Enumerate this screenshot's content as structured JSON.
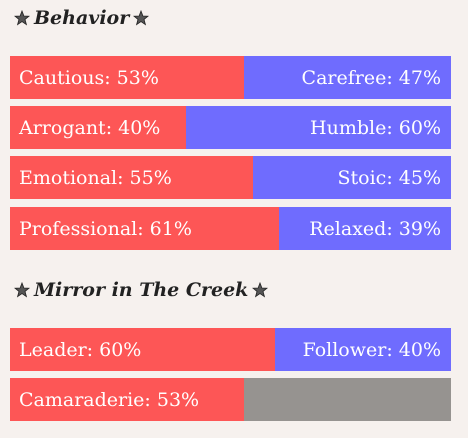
{
  "colors": {
    "left": "#fd5656",
    "right": "#6f6cfe",
    "empty": "#969390",
    "background": "#f6f1ee",
    "star": "#555555"
  },
  "sections": [
    {
      "title": "Behavior",
      "rows": [
        {
          "left_label": "Cautious: 53%",
          "left_pct": 53,
          "right_label": "Carefree: 47%"
        },
        {
          "left_label": "Arrogant: 40%",
          "left_pct": 40,
          "right_label": "Humble: 60%"
        },
        {
          "left_label": "Emotional: 55%",
          "left_pct": 55,
          "right_label": "Stoic: 45%"
        },
        {
          "left_label": "Professional: 61%",
          "left_pct": 61,
          "right_label": "Relaxed: 39%"
        }
      ]
    },
    {
      "title": "Mirror in The Creek",
      "rows": [
        {
          "left_label": "Leader: 60%",
          "left_pct": 60,
          "right_label": "Follower: 40%"
        },
        {
          "left_label": "Camaraderie: 53%",
          "left_pct": 53,
          "right_label": ""
        }
      ]
    }
  ]
}
